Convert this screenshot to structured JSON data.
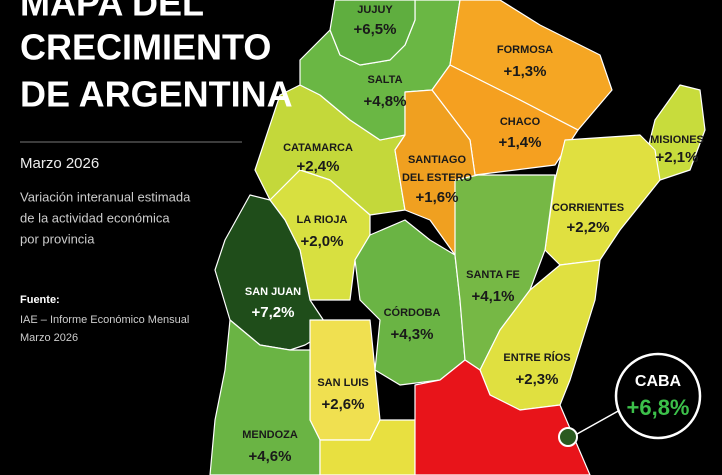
{
  "header": {
    "title_lines": [
      "MAPA DEL",
      "CRECIMIENTO",
      "DE ARGENTINA"
    ],
    "date": "Marzo 2026",
    "description_lines": [
      "Variación interanual estimada",
      "de la actividad económica",
      "por provincia"
    ],
    "source_label": "Fuente:",
    "source_lines": [
      "IAE – Informe Económico Mensual",
      "Marzo 2026"
    ]
  },
  "provinces": [
    {
      "name": "JUJUY",
      "value": "+6,5%"
    },
    {
      "name": "SALTA",
      "value": "+4,8%"
    },
    {
      "name": "FORMOSA",
      "value": "+1,3%"
    },
    {
      "name": "CHACO",
      "value": "+1,4%"
    },
    {
      "name_lines": [
        "SANTIAGO",
        "DEL ESTERO"
      ],
      "value": "+1,6%"
    },
    {
      "name": "MISIONES",
      "value": "+2,1%"
    },
    {
      "name": "CATAMARCA",
      "value": "+2,4%"
    },
    {
      "name": "CORRIENTES",
      "value": "+2,2%"
    },
    {
      "name": "LA RIOJA",
      "value": "+2,0%"
    },
    {
      "name": "SAN JUAN",
      "value": "+7,2%"
    },
    {
      "name": "SANTA FE",
      "value": "+4,1%"
    },
    {
      "name": "CÓRDOBA",
      "value": "+4,3%"
    },
    {
      "name": "ENTRE RÍOS",
      "value": "+2,3%"
    },
    {
      "name": "SAN LUIS",
      "value": "+2,6%"
    },
    {
      "name": "MENDOZA",
      "value": "+4,6%"
    }
  ],
  "callout": {
    "name": "CABA",
    "value": "+6,8%"
  }
}
